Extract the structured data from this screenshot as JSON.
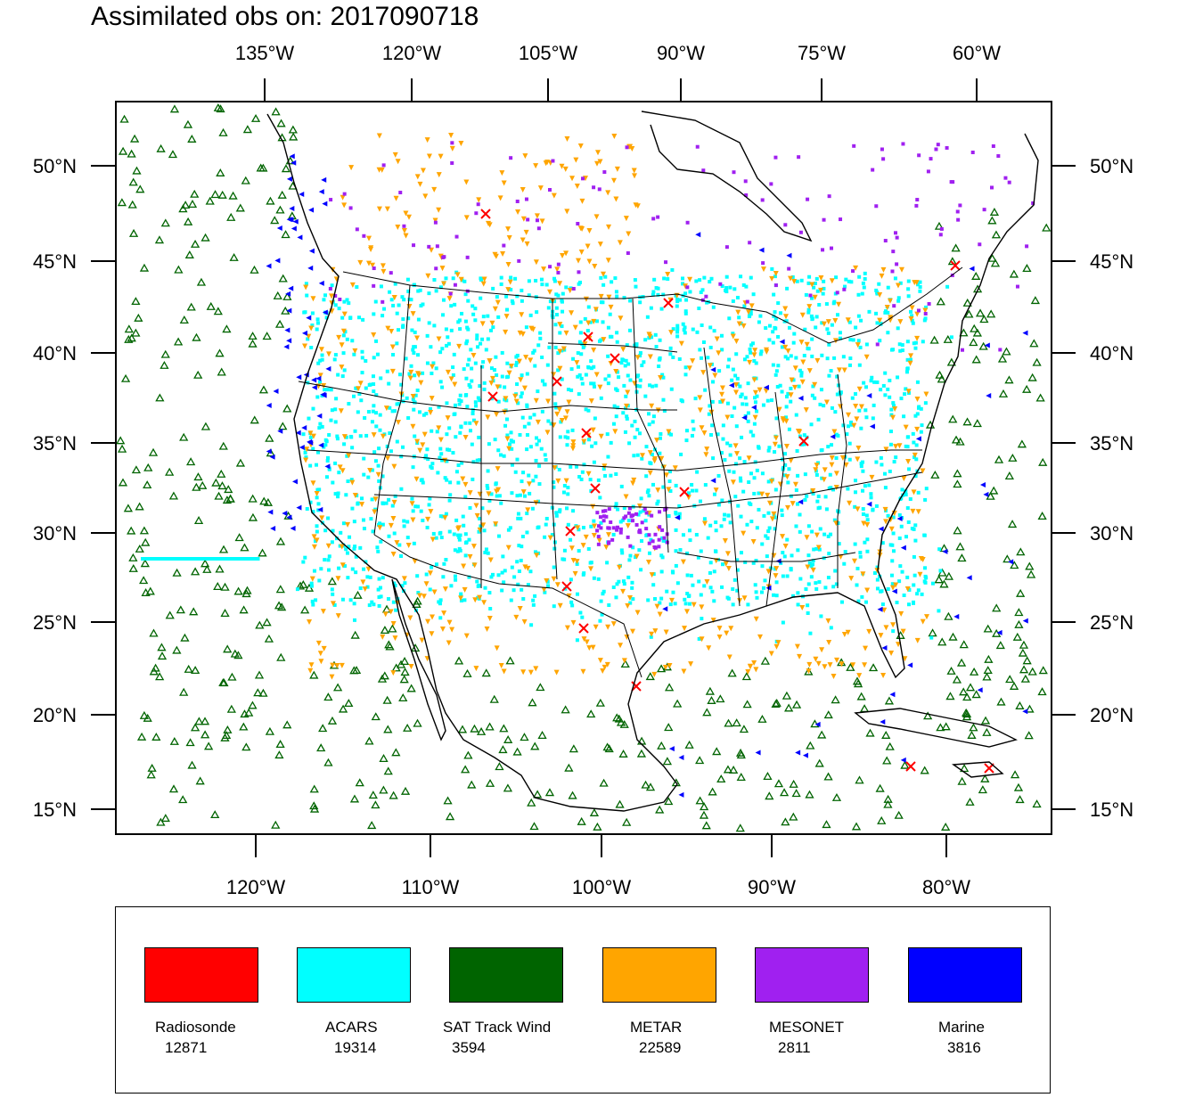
{
  "title": "Assimilated obs on: 2017090718",
  "top_lon_labels": [
    "135°W",
    "120°W",
    "105°W",
    "90°W",
    "75°W",
    "60°W"
  ],
  "bottom_lon_labels": [
    "120°W",
    "110°W",
    "100°W",
    "90°W",
    "80°W"
  ],
  "lat_labels": [
    "50°N",
    "45°N",
    "40°N",
    "35°N",
    "30°N",
    "25°N",
    "20°N",
    "15°N"
  ],
  "legend": [
    {
      "name": "Radiosonde",
      "count": "12871",
      "color": "#ff0000"
    },
    {
      "name": "ACARS",
      "count": "19314",
      "color": "#00ffff"
    },
    {
      "name": "SAT Track Wind",
      "count": "3594",
      "color": "#006400"
    },
    {
      "name": "METAR",
      "count": "22589",
      "color": "#ffa500"
    },
    {
      "name": "MESONET",
      "count": "2811",
      "color": "#a020f0"
    },
    {
      "name": "Marine",
      "count": "3816",
      "color": "#0000ff"
    }
  ]
}
